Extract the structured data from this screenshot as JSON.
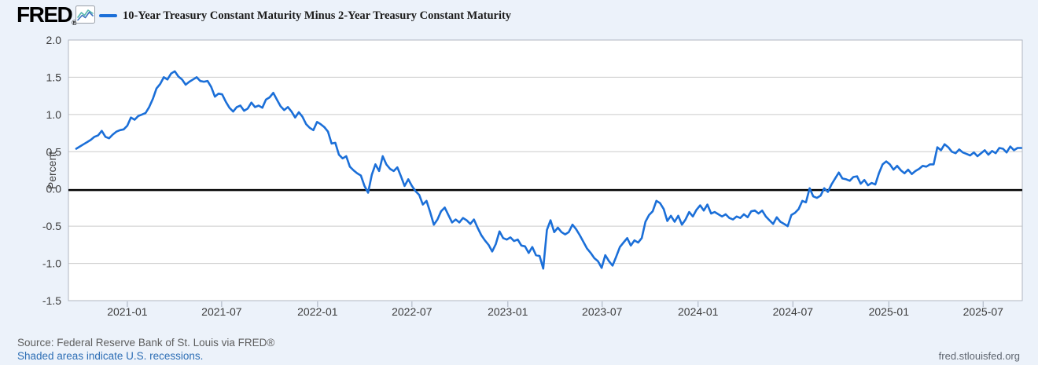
{
  "header": {
    "logo_text": "FRED",
    "logo_registered": "®",
    "legend_label": "10-Year Treasury Constant Maturity Minus 2-Year Treasury Constant Maturity"
  },
  "colors": {
    "page_background": "#ecf2fa",
    "plot_background": "#ffffff",
    "plot_border": "#b0b7c1",
    "gridline": "#cbcbcb",
    "zero_line": "#000000",
    "series_line": "#1b6fd8",
    "axis_label": "#3c3c3c",
    "tick_mark": "#b7bfcc",
    "legend_text": "#1b1b1b",
    "source_text": "#5e5e5e",
    "link_text": "#2d6eb5"
  },
  "chart_data": {
    "type": "line",
    "title": "10-Year Treasury Constant Maturity Minus 2-Year Treasury Constant Maturity",
    "xlabel": "",
    "ylabel": "Percent",
    "ylim": [
      -1.5,
      2.0
    ],
    "yticks": [
      2.0,
      1.5,
      1.0,
      0.5,
      0.0,
      -0.5,
      -1.0,
      -1.5
    ],
    "ytick_labels": [
      "2.0",
      "1.5",
      "1.0",
      "0.5",
      "0.0",
      "-0.5",
      "-1.0",
      "-1.5"
    ],
    "xlim_dates": [
      "2020-09-10",
      "2025-09-14"
    ],
    "xticks": [
      {
        "date": "2021-01-01",
        "label": "2021-01"
      },
      {
        "date": "2021-07-01",
        "label": "2021-07"
      },
      {
        "date": "2022-01-01",
        "label": "2022-01"
      },
      {
        "date": "2022-07-01",
        "label": "2022-07"
      },
      {
        "date": "2023-01-01",
        "label": "2023-01"
      },
      {
        "date": "2023-07-01",
        "label": "2023-07"
      },
      {
        "date": "2024-01-01",
        "label": "2024-01"
      },
      {
        "date": "2024-07-01",
        "label": "2024-07"
      },
      {
        "date": "2025-01-01",
        "label": "2025-01"
      },
      {
        "date": "2025-07-01",
        "label": "2025-07"
      }
    ],
    "grid": true,
    "zero_line": true,
    "legend_position": "top-left",
    "series": [
      {
        "name": "10-Year Treasury Constant Maturity Minus 2-Year Treasury Constant Maturity",
        "units": "Percent",
        "start_date": "2020-09-25",
        "step_days": 7,
        "values": [
          0.54,
          0.57,
          0.6,
          0.63,
          0.66,
          0.7,
          0.72,
          0.78,
          0.7,
          0.68,
          0.73,
          0.77,
          0.79,
          0.8,
          0.85,
          0.96,
          0.93,
          0.98,
          1.0,
          1.02,
          1.1,
          1.21,
          1.35,
          1.41,
          1.5,
          1.47,
          1.55,
          1.58,
          1.51,
          1.47,
          1.4,
          1.44,
          1.47,
          1.5,
          1.45,
          1.44,
          1.45,
          1.37,
          1.24,
          1.28,
          1.27,
          1.17,
          1.09,
          1.04,
          1.1,
          1.12,
          1.05,
          1.08,
          1.16,
          1.1,
          1.12,
          1.09,
          1.2,
          1.23,
          1.29,
          1.2,
          1.11,
          1.06,
          1.1,
          1.04,
          0.96,
          1.03,
          0.97,
          0.87,
          0.82,
          0.79,
          0.9,
          0.87,
          0.83,
          0.77,
          0.61,
          0.62,
          0.46,
          0.41,
          0.44,
          0.3,
          0.25,
          0.21,
          0.18,
          0.04,
          -0.05,
          0.19,
          0.33,
          0.24,
          0.44,
          0.33,
          0.27,
          0.24,
          0.29,
          0.17,
          0.04,
          0.13,
          0.04,
          -0.03,
          -0.08,
          -0.21,
          -0.16,
          -0.31,
          -0.48,
          -0.41,
          -0.3,
          -0.25,
          -0.35,
          -0.45,
          -0.41,
          -0.45,
          -0.39,
          -0.42,
          -0.47,
          -0.41,
          -0.52,
          -0.62,
          -0.69,
          -0.75,
          -0.84,
          -0.74,
          -0.57,
          -0.66,
          -0.68,
          -0.65,
          -0.7,
          -0.68,
          -0.76,
          -0.77,
          -0.86,
          -0.78,
          -0.89,
          -0.9,
          -1.07,
          -0.55,
          -0.42,
          -0.58,
          -0.52,
          -0.58,
          -0.61,
          -0.58,
          -0.48,
          -0.54,
          -0.62,
          -0.71,
          -0.8,
          -0.86,
          -0.93,
          -0.97,
          -1.06,
          -0.89,
          -0.97,
          -1.03,
          -0.91,
          -0.78,
          -0.72,
          -0.66,
          -0.76,
          -0.69,
          -0.72,
          -0.66,
          -0.44,
          -0.35,
          -0.3,
          -0.16,
          -0.19,
          -0.27,
          -0.43,
          -0.36,
          -0.44,
          -0.36,
          -0.48,
          -0.41,
          -0.31,
          -0.37,
          -0.28,
          -0.22,
          -0.29,
          -0.21,
          -0.33,
          -0.31,
          -0.34,
          -0.37,
          -0.34,
          -0.39,
          -0.41,
          -0.37,
          -0.39,
          -0.34,
          -0.38,
          -0.3,
          -0.29,
          -0.33,
          -0.29,
          -0.37,
          -0.42,
          -0.47,
          -0.38,
          -0.44,
          -0.47,
          -0.5,
          -0.35,
          -0.32,
          -0.27,
          -0.16,
          -0.18,
          0.01,
          -0.1,
          -0.12,
          -0.09,
          0.01,
          -0.04,
          0.06,
          0.14,
          0.22,
          0.14,
          0.13,
          0.11,
          0.16,
          0.17,
          0.07,
          0.12,
          0.05,
          0.08,
          0.06,
          0.21,
          0.33,
          0.37,
          0.33,
          0.26,
          0.31,
          0.25,
          0.21,
          0.26,
          0.2,
          0.24,
          0.27,
          0.31,
          0.3,
          0.33,
          0.33,
          0.56,
          0.52,
          0.6,
          0.56,
          0.5,
          0.48,
          0.53,
          0.49,
          0.47,
          0.45,
          0.49,
          0.44,
          0.48,
          0.52,
          0.46,
          0.51,
          0.48,
          0.55,
          0.54,
          0.49,
          0.57,
          0.52,
          0.55,
          0.55
        ]
      }
    ]
  },
  "footer": {
    "source_line": "Source: Federal Reserve Bank of St. Louis via FRED®",
    "recession_note": "Shaded areas indicate U.S. recessions.",
    "site_link": "fred.stlouisfed.org"
  }
}
